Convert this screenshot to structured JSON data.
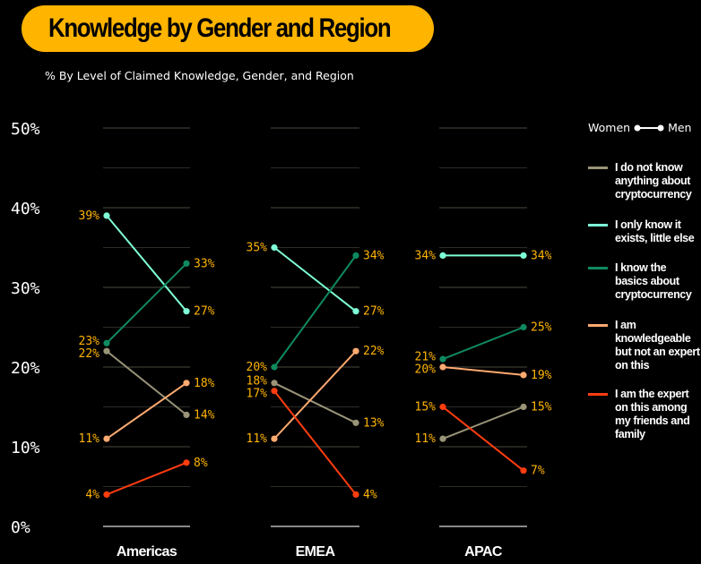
{
  "title": "Knowledge by Gender and Region",
  "subtitle": "% By Level of Claimed Knowledge, Gender, and Region",
  "legend": {
    "women": "Women",
    "men": "Men",
    "items": [
      {
        "label": "I do not know anything about cryptocurrency",
        "color": "#9a9478"
      },
      {
        "label": "I only know it exists, little else",
        "color": "#7effd6"
      },
      {
        "label": "I know the basics about cryptocurrency",
        "color": "#0f8a5f"
      },
      {
        "label": "I am knowledgeable but not an expert on this",
        "color": "#ffaa70"
      },
      {
        "label": "I am the expert on this among my friends and family",
        "color": "#ff3d10"
      }
    ]
  },
  "chart_data": {
    "type": "line",
    "title": "Knowledge by Gender and Region",
    "subtitle": "% By Level of Claimed Knowledge, Gender, and Region",
    "x": [
      "Women",
      "Men"
    ],
    "y_ticks": [
      "0%",
      "10%",
      "20%",
      "30%",
      "40%",
      "50%"
    ],
    "ylim": [
      0,
      50
    ],
    "label_color": "#ffb400",
    "panels": [
      {
        "region": "Americas",
        "series": [
          {
            "name": "I do not know anything about cryptocurrency",
            "values": [
              22,
              14
            ]
          },
          {
            "name": "I only know it exists, little else",
            "values": [
              39,
              27
            ]
          },
          {
            "name": "I know the basics about cryptocurrency",
            "values": [
              23,
              33
            ]
          },
          {
            "name": "I am knowledgeable but not an expert on this",
            "values": [
              11,
              18
            ]
          },
          {
            "name": "I am the expert on this among my friends and family",
            "values": [
              4,
              8
            ]
          }
        ]
      },
      {
        "region": "EMEA",
        "series": [
          {
            "name": "I do not know anything about cryptocurrency",
            "values": [
              18,
              13
            ]
          },
          {
            "name": "I only know it exists, little else",
            "values": [
              35,
              27
            ]
          },
          {
            "name": "I know the basics about cryptocurrency",
            "values": [
              20,
              34
            ]
          },
          {
            "name": "I am knowledgeable but not an expert on this",
            "values": [
              11,
              22
            ]
          },
          {
            "name": "I am the expert on this among my friends and family",
            "values": [
              17,
              4
            ]
          }
        ]
      },
      {
        "region": "APAC",
        "series": [
          {
            "name": "I do not know anything about cryptocurrency",
            "values": [
              11,
              15
            ]
          },
          {
            "name": "I only know it exists, little else",
            "values": [
              34,
              34
            ]
          },
          {
            "name": "I know the basics about cryptocurrency",
            "values": [
              21,
              25
            ]
          },
          {
            "name": "I am knowledgeable but not an expert on this",
            "values": [
              20,
              19
            ]
          },
          {
            "name": "I am the expert on this among my friends and family",
            "values": [
              15,
              7
            ]
          }
        ]
      }
    ]
  }
}
